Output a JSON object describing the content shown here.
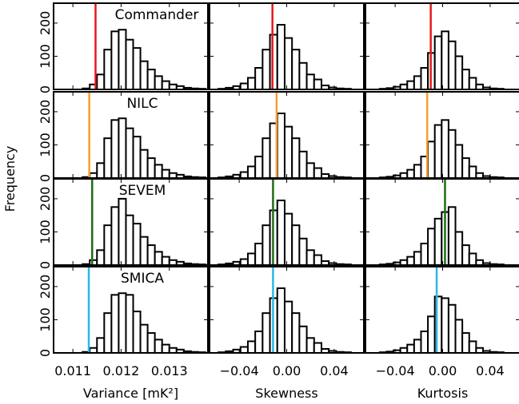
{
  "chart_data": {
    "type": "histogram-grid",
    "ylabel": "Frequency",
    "rows": [
      {
        "name": "Commander",
        "color": "#e41a1c"
      },
      {
        "name": "NILC",
        "color": "#f5a02a"
      },
      {
        "name": "SEVEM",
        "color": "#1e6e14"
      },
      {
        "name": "SMICA",
        "color": "#29b8e8"
      }
    ],
    "columns": [
      {
        "xlabel": "Variance [mK²]",
        "xlim": [
          0.0106,
          0.0138
        ],
        "xticks": [
          0.011,
          0.012,
          0.013
        ],
        "xtick_labels": [
          "0.011",
          "0.012",
          "0.013"
        ],
        "bin_start": 0.0112,
        "bin_width": 0.00015,
        "counts": [
          [
            3,
            15,
            45,
            120,
            175,
            180,
            150,
            125,
            85,
            60,
            40,
            25,
            15,
            10,
            5,
            3,
            2
          ],
          [
            3,
            15,
            45,
            120,
            175,
            180,
            150,
            125,
            85,
            60,
            40,
            25,
            15,
            10,
            5,
            3,
            2
          ],
          [
            3,
            15,
            45,
            120,
            175,
            200,
            150,
            125,
            85,
            60,
            40,
            25,
            15,
            10,
            5,
            3,
            2
          ],
          [
            3,
            15,
            45,
            120,
            175,
            180,
            175,
            125,
            85,
            60,
            40,
            25,
            15,
            10,
            5,
            3,
            2
          ]
        ],
        "observed": [
          0.01147,
          0.01134,
          0.0114,
          0.01133
        ]
      },
      {
        "xlabel": "Skewness",
        "xlim": [
          -0.065,
          0.065
        ],
        "xticks": [
          -0.04,
          0.0,
          0.04
        ],
        "xtick_labels": [
          "−0.04",
          "0.00",
          "0.04"
        ],
        "bin_start": -0.0575,
        "bin_width": 0.0062,
        "counts": [
          [
            2,
            5,
            10,
            18,
            35,
            65,
            120,
            165,
            195,
            155,
            120,
            80,
            45,
            30,
            12,
            6,
            3,
            2
          ],
          [
            2,
            5,
            10,
            18,
            35,
            65,
            120,
            165,
            195,
            155,
            120,
            80,
            45,
            30,
            12,
            6,
            3,
            2
          ],
          [
            2,
            5,
            10,
            18,
            35,
            65,
            120,
            165,
            195,
            155,
            120,
            80,
            45,
            30,
            12,
            6,
            3,
            2
          ],
          [
            2,
            5,
            10,
            18,
            35,
            65,
            120,
            165,
            195,
            155,
            120,
            80,
            45,
            30,
            12,
            6,
            3,
            2
          ]
        ],
        "observed": [
          -0.012,
          -0.0085,
          -0.0115,
          -0.0115
        ]
      },
      {
        "xlabel": "Kurtosis",
        "xlim": [
          -0.065,
          0.065
        ],
        "xticks": [
          -0.04,
          0.0,
          0.04
        ],
        "xtick_labels": [
          "−0.04",
          "0.00",
          "0.04"
        ],
        "bin_start": -0.053,
        "bin_width": 0.0058,
        "counts": [
          [
            2,
            4,
            8,
            15,
            25,
            40,
            65,
            110,
            160,
            175,
            145,
            100,
            60,
            35,
            15,
            6,
            3,
            2
          ],
          [
            2,
            4,
            8,
            15,
            25,
            40,
            65,
            110,
            160,
            175,
            145,
            100,
            60,
            35,
            15,
            6,
            3,
            2
          ],
          [
            2,
            4,
            8,
            15,
            25,
            40,
            65,
            110,
            140,
            160,
            175,
            100,
            60,
            35,
            15,
            6,
            3,
            2
          ],
          [
            2,
            4,
            8,
            15,
            25,
            40,
            65,
            110,
            170,
            165,
            145,
            100,
            60,
            35,
            15,
            6,
            3,
            2
          ]
        ],
        "observed": [
          -0.01,
          -0.013,
          0.002,
          -0.005
        ]
      }
    ],
    "ylim": [
      0,
      260
    ],
    "yticks": [
      0,
      100,
      200
    ],
    "ytick_labels": [
      "0",
      "100",
      "200"
    ],
    "grid": false
  }
}
